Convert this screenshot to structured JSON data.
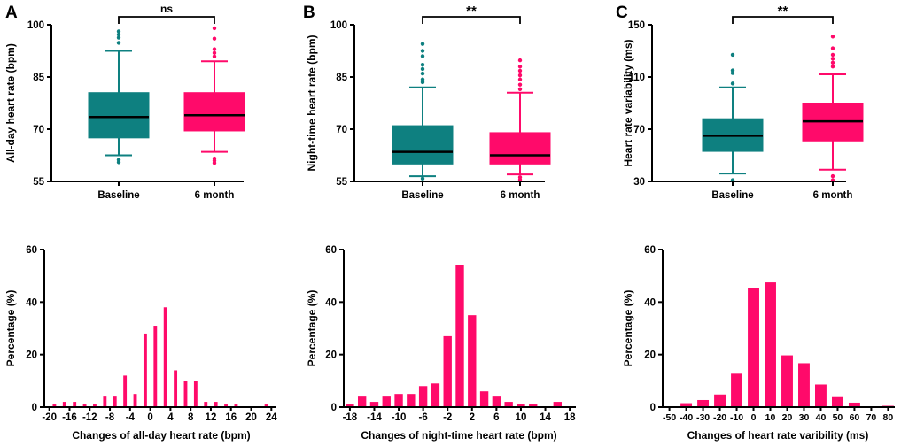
{
  "panel_letters": [
    "A",
    "B",
    "C"
  ],
  "colors": {
    "baseline": "#0E8080",
    "six_month": "#FF0A6A",
    "median": "#000000",
    "axis": "#000000"
  },
  "chart_data": [
    {
      "type": "box",
      "panel": "A",
      "ylabel": "All-day heart rate (bpm)",
      "ylim": [
        55,
        100
      ],
      "yticks": [
        55,
        70,
        85,
        100
      ],
      "categories": [
        "Baseline",
        "6 month"
      ],
      "significance": "ns",
      "boxes": [
        {
          "name": "Baseline",
          "whisker_low": 62.5,
          "q1": 67.5,
          "median": 73.5,
          "q3": 80.5,
          "whisker_high": 92.5,
          "outliers": [
            60.5,
            61.2,
            94.8,
            96.3,
            97.2,
            98.1
          ]
        },
        {
          "name": "6 month",
          "whisker_low": 63.5,
          "q1": 69.5,
          "median": 74.0,
          "q3": 80.5,
          "whisker_high": 89.5,
          "outliers": [
            60.3,
            61.0,
            61.6,
            90.9,
            91.9,
            93.0,
            96.0,
            99.0
          ]
        }
      ]
    },
    {
      "type": "box",
      "panel": "B",
      "ylabel": "Night-time heart rate (bpm)",
      "ylim": [
        55,
        100
      ],
      "yticks": [
        55,
        70,
        85,
        100
      ],
      "categories": [
        "Baseline",
        "6 month"
      ],
      "significance": "**",
      "boxes": [
        {
          "name": "Baseline",
          "whisker_low": 56.5,
          "q1": 60.0,
          "median": 63.5,
          "q3": 71.0,
          "whisker_high": 82.0,
          "outliers": [
            55.8,
            83.5,
            84.3,
            86.0,
            87.3,
            88.5,
            91.0,
            92.5,
            94.5
          ]
        },
        {
          "name": "6 month",
          "whisker_low": 57.0,
          "q1": 60.0,
          "median": 62.5,
          "q3": 69.0,
          "whisker_high": 80.5,
          "outliers": [
            55.5,
            56.2,
            81.5,
            82.8,
            84.3,
            85.5,
            86.8,
            88.0,
            89.8
          ]
        }
      ]
    },
    {
      "type": "box",
      "panel": "C",
      "ylabel": "Heart rate variability (ms)",
      "ylim": [
        30,
        150
      ],
      "yticks": [
        30,
        70,
        110,
        150
      ],
      "categories": [
        "Baseline",
        "6 month"
      ],
      "significance": "**",
      "boxes": [
        {
          "name": "Baseline",
          "whisker_low": 36,
          "q1": 53,
          "median": 65,
          "q3": 78,
          "whisker_high": 102,
          "outliers": [
            31,
            105,
            113,
            115,
            127
          ]
        },
        {
          "name": "6 month",
          "whisker_low": 39,
          "q1": 61,
          "median": 76,
          "q3": 90,
          "whisker_high": 112,
          "outliers": [
            31,
            34,
            118,
            121,
            124,
            127,
            132,
            141
          ]
        }
      ]
    },
    {
      "type": "bar",
      "panel": "A",
      "xlabel": "Changes of all-day heart rate (bpm)",
      "ylabel": "Percentage (%)",
      "ylim": [
        0,
        60
      ],
      "yticks": [
        0,
        20,
        40,
        60
      ],
      "xlim": [
        -21,
        25
      ],
      "xticks": [
        -20,
        -16,
        -12,
        -8,
        -4,
        0,
        4,
        8,
        12,
        16,
        20,
        24
      ],
      "bin_width": 1,
      "x": [
        -20,
        -19,
        -18,
        -17,
        -16,
        -15,
        -14,
        -13,
        -12,
        -11,
        -10,
        -9,
        -8,
        -7,
        -6,
        -5,
        -4,
        -3,
        -2,
        -1,
        0,
        1,
        2,
        3,
        4,
        5,
        6,
        7,
        8,
        9,
        10,
        11,
        12,
        13,
        14,
        15,
        16,
        17,
        18,
        19,
        20,
        21,
        22,
        23,
        24
      ],
      "values": [
        0,
        1,
        0,
        2,
        0,
        2,
        0,
        1,
        0,
        1,
        0,
        4,
        0,
        4,
        0,
        12,
        0,
        5,
        0,
        28,
        0,
        31,
        0,
        38,
        0,
        14,
        0,
        10,
        0,
        10,
        0,
        2,
        0,
        2,
        0,
        1,
        0,
        1,
        0,
        0,
        0,
        0,
        0,
        1,
        0
      ]
    },
    {
      "type": "bar",
      "panel": "B",
      "xlabel": "Changes of night-time heart rate  (bpm)",
      "ylabel": "Percentage (%)",
      "ylim": [
        0,
        60
      ],
      "yticks": [
        0,
        20,
        40,
        60
      ],
      "xlim": [
        -19,
        19
      ],
      "xticks": [
        -18,
        -14,
        -10,
        -6,
        -2,
        2,
        6,
        10,
        14,
        18
      ],
      "bin_width": 2,
      "x": [
        -18,
        -16,
        -14,
        -12,
        -10,
        -8,
        -6,
        -4,
        -2,
        0,
        2,
        4,
        6,
        8,
        10,
        12,
        14,
        16
      ],
      "values": [
        1,
        4,
        2,
        4,
        5,
        5,
        8,
        9,
        27,
        54,
        35,
        6,
        4,
        2,
        1,
        1,
        0,
        2
      ]
    },
    {
      "type": "bar",
      "panel": "C",
      "xlabel": "Changes of heart rate varibility (ms)",
      "ylabel": "Percentage (%)",
      "ylim": [
        0,
        60
      ],
      "yticks": [
        0,
        20,
        40,
        60
      ],
      "xlim": [
        -54,
        84
      ],
      "xticks": [
        -50,
        -40,
        -30,
        -20,
        -10,
        0,
        10,
        20,
        30,
        40,
        50,
        60,
        70,
        80
      ],
      "xtick_labels": [
        "-50",
        "-40",
        "-30",
        "-20",
        "-10",
        "0",
        "10",
        "20",
        "30",
        "40",
        "50",
        "60",
        "70",
        "80"
      ],
      "bin_width": 10,
      "x": [
        -50,
        -40,
        -30,
        -20,
        -10,
        0,
        10,
        20,
        30,
        40,
        50,
        60,
        70,
        80
      ],
      "values": [
        0,
        1.5,
        2.7,
        4.8,
        12.7,
        45.5,
        47.5,
        19.7,
        16.7,
        8.6,
        3.8,
        1.7,
        0,
        0.5
      ]
    }
  ]
}
